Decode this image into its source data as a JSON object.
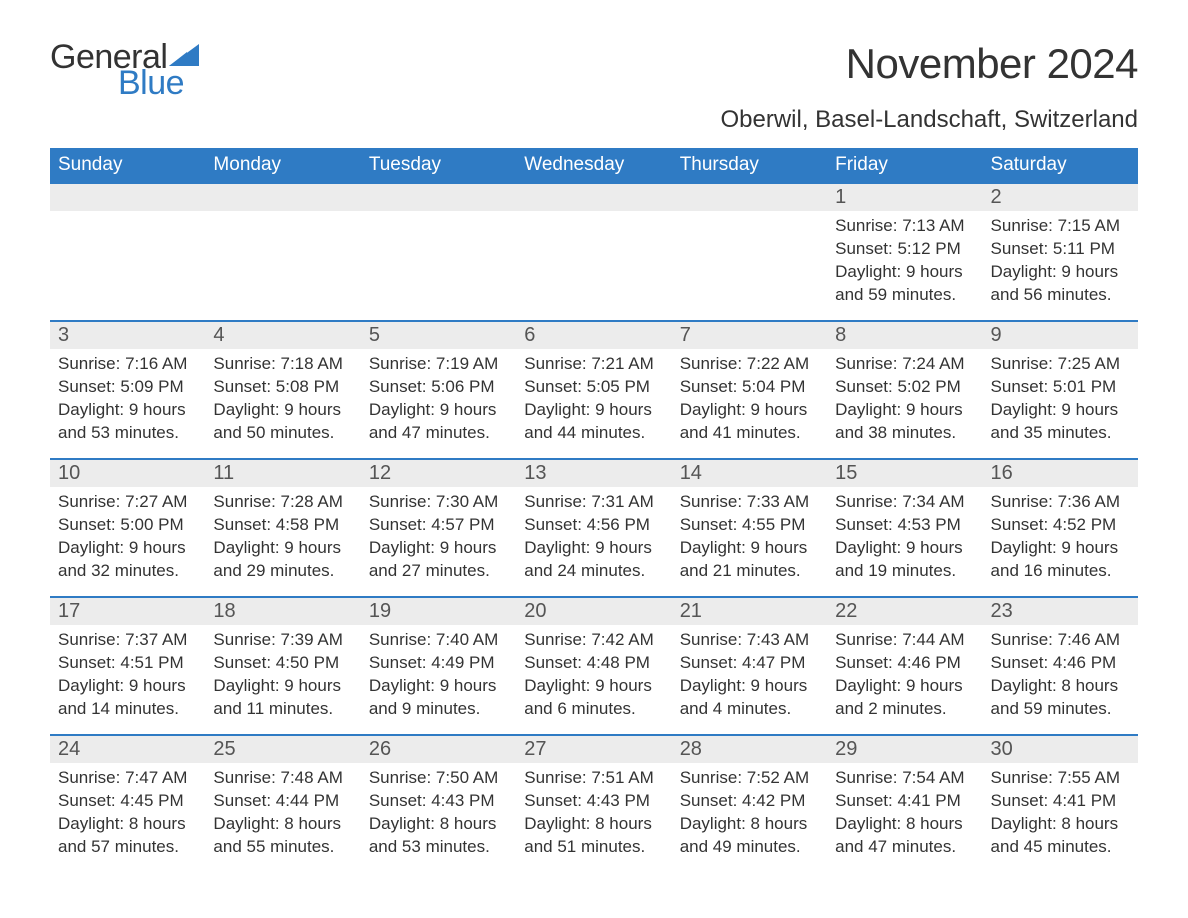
{
  "brand": {
    "word1": "General",
    "word2": "Blue",
    "word1_color": "#333333",
    "word2_color": "#2f7bc4",
    "triangle_color": "#2f7bc4",
    "font_size_pt": 26
  },
  "title": {
    "month": "November 2024",
    "location": "Oberwil, Basel-Landschaft, Switzerland",
    "month_fontsize_pt": 32,
    "location_fontsize_pt": 18,
    "color": "#333333"
  },
  "calendar": {
    "header_bg": "#2f7bc4",
    "header_fg": "#ffffff",
    "row_border_color": "#2f7bc4",
    "daynum_bg": "#ececec",
    "daynum_color": "#555555",
    "body_text_color": "#333333",
    "body_fontsize_pt": 13,
    "daynum_fontsize_pt": 15,
    "header_fontsize_pt": 14,
    "columns": [
      "Sunday",
      "Monday",
      "Tuesday",
      "Wednesday",
      "Thursday",
      "Friday",
      "Saturday"
    ],
    "weeks": [
      [
        null,
        null,
        null,
        null,
        null,
        {
          "day": "1",
          "sunrise": "7:13 AM",
          "sunset": "5:12 PM",
          "daylight": "9 hours and 59 minutes."
        },
        {
          "day": "2",
          "sunrise": "7:15 AM",
          "sunset": "5:11 PM",
          "daylight": "9 hours and 56 minutes."
        }
      ],
      [
        {
          "day": "3",
          "sunrise": "7:16 AM",
          "sunset": "5:09 PM",
          "daylight": "9 hours and 53 minutes."
        },
        {
          "day": "4",
          "sunrise": "7:18 AM",
          "sunset": "5:08 PM",
          "daylight": "9 hours and 50 minutes."
        },
        {
          "day": "5",
          "sunrise": "7:19 AM",
          "sunset": "5:06 PM",
          "daylight": "9 hours and 47 minutes."
        },
        {
          "day": "6",
          "sunrise": "7:21 AM",
          "sunset": "5:05 PM",
          "daylight": "9 hours and 44 minutes."
        },
        {
          "day": "7",
          "sunrise": "7:22 AM",
          "sunset": "5:04 PM",
          "daylight": "9 hours and 41 minutes."
        },
        {
          "day": "8",
          "sunrise": "7:24 AM",
          "sunset": "5:02 PM",
          "daylight": "9 hours and 38 minutes."
        },
        {
          "day": "9",
          "sunrise": "7:25 AM",
          "sunset": "5:01 PM",
          "daylight": "9 hours and 35 minutes."
        }
      ],
      [
        {
          "day": "10",
          "sunrise": "7:27 AM",
          "sunset": "5:00 PM",
          "daylight": "9 hours and 32 minutes."
        },
        {
          "day": "11",
          "sunrise": "7:28 AM",
          "sunset": "4:58 PM",
          "daylight": "9 hours and 29 minutes."
        },
        {
          "day": "12",
          "sunrise": "7:30 AM",
          "sunset": "4:57 PM",
          "daylight": "9 hours and 27 minutes."
        },
        {
          "day": "13",
          "sunrise": "7:31 AM",
          "sunset": "4:56 PM",
          "daylight": "9 hours and 24 minutes."
        },
        {
          "day": "14",
          "sunrise": "7:33 AM",
          "sunset": "4:55 PM",
          "daylight": "9 hours and 21 minutes."
        },
        {
          "day": "15",
          "sunrise": "7:34 AM",
          "sunset": "4:53 PM",
          "daylight": "9 hours and 19 minutes."
        },
        {
          "day": "16",
          "sunrise": "7:36 AM",
          "sunset": "4:52 PM",
          "daylight": "9 hours and 16 minutes."
        }
      ],
      [
        {
          "day": "17",
          "sunrise": "7:37 AM",
          "sunset": "4:51 PM",
          "daylight": "9 hours and 14 minutes."
        },
        {
          "day": "18",
          "sunrise": "7:39 AM",
          "sunset": "4:50 PM",
          "daylight": "9 hours and 11 minutes."
        },
        {
          "day": "19",
          "sunrise": "7:40 AM",
          "sunset": "4:49 PM",
          "daylight": "9 hours and 9 minutes."
        },
        {
          "day": "20",
          "sunrise": "7:42 AM",
          "sunset": "4:48 PM",
          "daylight": "9 hours and 6 minutes."
        },
        {
          "day": "21",
          "sunrise": "7:43 AM",
          "sunset": "4:47 PM",
          "daylight": "9 hours and 4 minutes."
        },
        {
          "day": "22",
          "sunrise": "7:44 AM",
          "sunset": "4:46 PM",
          "daylight": "9 hours and 2 minutes."
        },
        {
          "day": "23",
          "sunrise": "7:46 AM",
          "sunset": "4:46 PM",
          "daylight": "8 hours and 59 minutes."
        }
      ],
      [
        {
          "day": "24",
          "sunrise": "7:47 AM",
          "sunset": "4:45 PM",
          "daylight": "8 hours and 57 minutes."
        },
        {
          "day": "25",
          "sunrise": "7:48 AM",
          "sunset": "4:44 PM",
          "daylight": "8 hours and 55 minutes."
        },
        {
          "day": "26",
          "sunrise": "7:50 AM",
          "sunset": "4:43 PM",
          "daylight": "8 hours and 53 minutes."
        },
        {
          "day": "27",
          "sunrise": "7:51 AM",
          "sunset": "4:43 PM",
          "daylight": "8 hours and 51 minutes."
        },
        {
          "day": "28",
          "sunrise": "7:52 AM",
          "sunset": "4:42 PM",
          "daylight": "8 hours and 49 minutes."
        },
        {
          "day": "29",
          "sunrise": "7:54 AM",
          "sunset": "4:41 PM",
          "daylight": "8 hours and 47 minutes."
        },
        {
          "day": "30",
          "sunrise": "7:55 AM",
          "sunset": "4:41 PM",
          "daylight": "8 hours and 45 minutes."
        }
      ]
    ],
    "labels": {
      "sunrise": "Sunrise:",
      "sunset": "Sunset:",
      "daylight": "Daylight:"
    }
  }
}
